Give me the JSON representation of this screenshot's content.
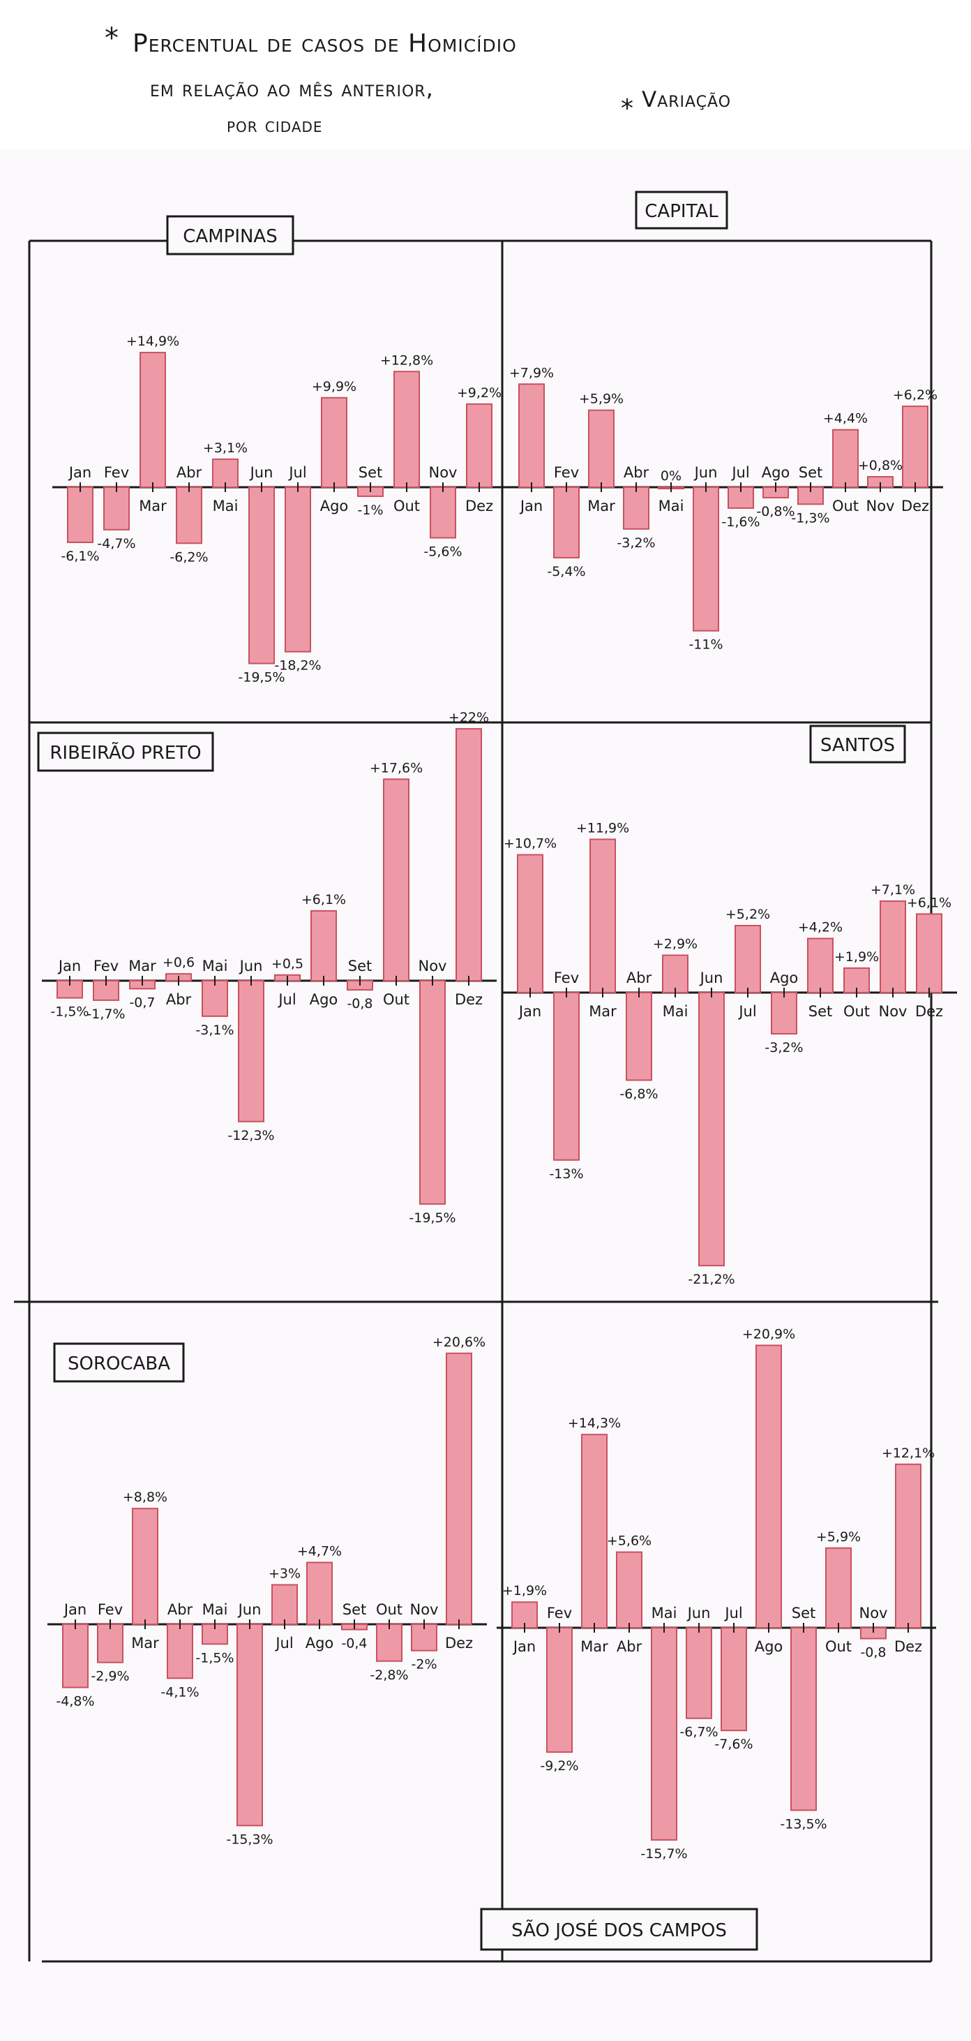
{
  "header": {
    "star": "*",
    "title_line1": "Percentual de casos de Homicídio",
    "title_line2": "em relação ao mês anterior,",
    "title_line3": "por cidade",
    "note_star": "*",
    "note": "Variação"
  },
  "colors": {
    "bar_fill": "#ee9aa6",
    "bar_stroke": "#c9515f",
    "ink": "#1a1a1a",
    "paper": "#fbf9fb"
  },
  "chart_data": [
    {
      "type": "bar",
      "title": "CAMPINAS",
      "categories": [
        "Jan",
        "Fev",
        "Mar",
        "Abr",
        "Mai",
        "Jun",
        "Jul",
        "Ago",
        "Set",
        "Out",
        "Nov",
        "Dez"
      ],
      "values": [
        -6.1,
        -4.7,
        14.9,
        -6.2,
        3.1,
        -19.5,
        -18.2,
        9.9,
        -1.0,
        12.8,
        -5.6,
        9.2
      ],
      "value_labels": [
        "-6,1%",
        "-4,7%",
        "+14,9%",
        "-6,2%",
        "+3,1%",
        "-19,5%",
        "-18,2%",
        "+9,9%",
        "-1%",
        "+12,8%",
        "-5,6%",
        "+9,2%"
      ],
      "ylim": [
        -22,
        16
      ],
      "xlabel": "",
      "ylabel": ""
    },
    {
      "type": "bar",
      "title": "CAPITAL",
      "categories": [
        "Jan",
        "Fev",
        "Mar",
        "Abr",
        "Mai",
        "Jun",
        "Jul",
        "Ago",
        "Set",
        "Out",
        "Nov",
        "Dez"
      ],
      "values": [
        7.9,
        -5.4,
        5.9,
        -3.2,
        0,
        -11.0,
        -1.6,
        -0.8,
        -1.3,
        4.4,
        0.8,
        6.2
      ],
      "value_labels": [
        "+7,9%",
        "-5,4%",
        "+5,9%",
        "-3,2%",
        "0%",
        "-11%",
        "-1,6%",
        "-0,8%",
        "-1,3%",
        "+4,4%",
        "+0,8%",
        "+6,2%"
      ],
      "ylim": [
        -12.5,
        9
      ],
      "xlabel": "",
      "ylabel": ""
    },
    {
      "type": "bar",
      "title": "RIBEIRÃO PRETO",
      "categories": [
        "Jan",
        "Fev",
        "Mar",
        "Abr",
        "Mai",
        "Jun",
        "Jul",
        "Ago",
        "Set",
        "Out",
        "Nov",
        "Dez"
      ],
      "values": [
        -1.5,
        -1.7,
        -0.7,
        0.6,
        -3.1,
        -12.3,
        0.5,
        6.1,
        -0.8,
        17.6,
        -19.5,
        22.0
      ],
      "value_labels": [
        "-1,5%",
        "-1,7%",
        "-0,7",
        "+0,6",
        "-3,1%",
        "-12,3%",
        "+0,5",
        "+6,1%",
        "-0,8",
        "+17,6%",
        "-19,5%",
        "+22%"
      ],
      "ylim": [
        -21.5,
        23
      ],
      "xlabel": "",
      "ylabel": ""
    },
    {
      "type": "bar",
      "title": "SANTOS",
      "categories": [
        "Jan",
        "Fev",
        "Mar",
        "Abr",
        "Mai",
        "Jun",
        "Jul",
        "Ago",
        "Set",
        "Out",
        "Nov",
        "Dez"
      ],
      "values": [
        10.7,
        -13.0,
        11.9,
        -6.8,
        2.9,
        -21.2,
        5.2,
        -3.2,
        4.2,
        1.9,
        7.1,
        6.1
      ],
      "value_labels": [
        "+10,7%",
        "-13%",
        "+11,9%",
        "-6,8%",
        "+2,9%",
        "-21,2%",
        "+5,2%",
        "-3,2%",
        "+4,2%",
        "+1,9%",
        "+7,1%",
        "+6,1%"
      ],
      "ylim": [
        -22.5,
        13
      ],
      "xlabel": "",
      "ylabel": ""
    },
    {
      "type": "bar",
      "title": "SOROCABA",
      "categories": [
        "Jan",
        "Fev",
        "Mar",
        "Abr",
        "Mai",
        "Jun",
        "Jul",
        "Ago",
        "Set",
        "Out",
        "Nov",
        "Dez"
      ],
      "values": [
        -4.8,
        -2.9,
        8.8,
        -4.1,
        -1.5,
        -15.3,
        3.0,
        4.7,
        -0.4,
        -2.8,
        -2.0,
        20.6
      ],
      "value_labels": [
        "-4,8%",
        "-2,9%",
        "+8,8%",
        "-4,1%",
        "-1,5%",
        "-15,3%",
        "+3%",
        "+4,7%",
        "-0,4",
        "-2,8%",
        "-2%",
        "+20,6%"
      ],
      "ylim": [
        -17,
        22
      ],
      "xlabel": "",
      "ylabel": ""
    },
    {
      "type": "bar",
      "title": "SÃO JOSÉ DOS CAMPOS",
      "categories": [
        "Jan",
        "Fev",
        "Mar",
        "Abr",
        "Mai",
        "Jun",
        "Jul",
        "Ago",
        "Set",
        "Out",
        "Nov",
        "Dez"
      ],
      "values": [
        1.9,
        -9.2,
        14.3,
        5.6,
        -15.7,
        -6.7,
        -7.6,
        20.9,
        -13.5,
        5.9,
        -0.8,
        12.1
      ],
      "value_labels": [
        "+1,9%",
        "-9,2%",
        "+14,3%",
        "+5,6%",
        "-15,7%",
        "-6,7%",
        "-7,6%",
        "+20,9%",
        "-13,5%",
        "+5,9%",
        "-0,8",
        "+12,1%"
      ],
      "ylim": [
        -17,
        22
      ],
      "xlabel": "",
      "ylabel": ""
    }
  ]
}
